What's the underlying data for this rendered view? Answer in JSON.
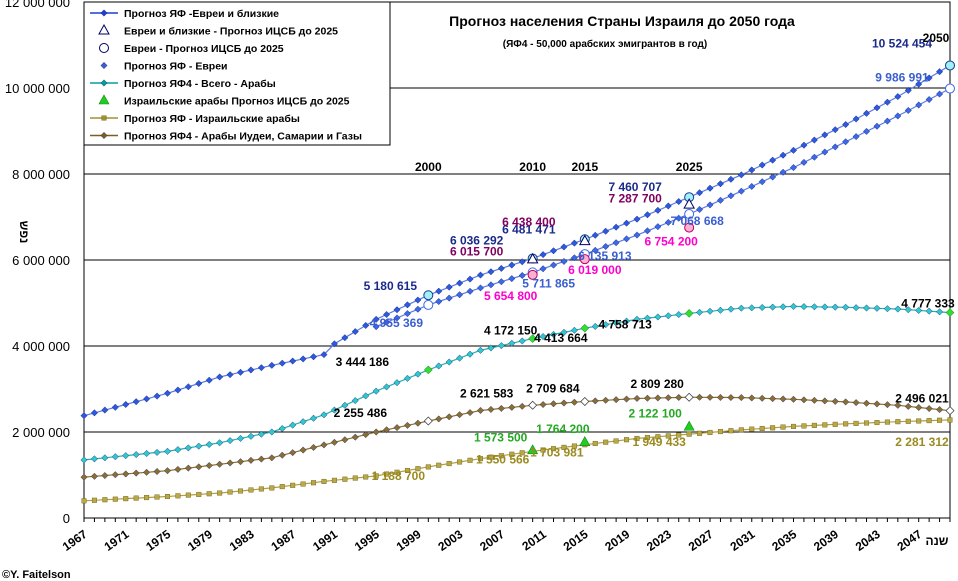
{
  "chart_data": {
    "type": "line",
    "title": "Прогноз населения Страны Израиля до 2050 года",
    "subtitle": "(ЯФ4 - 50,000 арабских эмигрантов в год)",
    "ylabel": "נפש",
    "xlabel": "שנה",
    "copyright": "©Y. Faitelson",
    "ylim": [
      0,
      12000000
    ],
    "xlim": [
      1967,
      2050
    ],
    "y_ticks": [
      "0",
      "2 000 000",
      "4 000 000",
      "6 000 000",
      "8 000 000",
      "10 000 000",
      "12 000 000"
    ],
    "x_ticks": [
      "1967",
      "1971",
      "1975",
      "1979",
      "1983",
      "1987",
      "1991",
      "1995",
      "1999",
      "2003",
      "2007",
      "2011",
      "2015",
      "2019",
      "2023",
      "2027",
      "2031",
      "2035",
      "2039",
      "2043",
      "2047"
    ],
    "year_markers": [
      {
        "label": "2000",
        "x": 2000
      },
      {
        "label": "2010",
        "x": 2010
      },
      {
        "label": "2015",
        "x": 2015
      },
      {
        "label": "2025",
        "x": 2025
      },
      {
        "label": "2050",
        "x": 2050
      }
    ],
    "legend": {
      "position": "top-left",
      "entries": [
        {
          "name": "Прогноз ЯФ -Евреи и близкие",
          "color": "#1c3fd6",
          "marker": "diamond-line"
        },
        {
          "name": "Евреи и близкие - Прогноз ИЦСБ до 2025",
          "color": "#000060",
          "marker": "triangle-open"
        },
        {
          "name": "Евреи - Прогноз ИЦСБ до 2025",
          "color": "#000060",
          "marker": "circle-open"
        },
        {
          "name": "Прогноз ЯФ - Евреи",
          "color": "#3a5ed0",
          "marker": "diamond-small"
        },
        {
          "name": "Прогноз ЯФ4 - Всего - Арабы",
          "color": "#00a0a0",
          "marker": "diamond-line"
        },
        {
          "name": "Израильские арабы Прогноз ИЦСБ до 2025",
          "color": "#22cc22",
          "marker": "triangle-filled"
        },
        {
          "name": "Прогноз ЯФ - Израильские арабы",
          "color": "#a09030",
          "marker": "square-line"
        },
        {
          "name": "Прогноз ЯФ4 - Арабы Иудеи, Самарии и Газы",
          "color": "#7a6020",
          "marker": "diamond-line"
        }
      ]
    },
    "series": [
      {
        "name": "Прогноз ЯФ -Евреи и близкие",
        "color": "#1c3fd6",
        "x": [
          1967,
          1975,
          1980,
          1985,
          1990,
          1991,
          1995,
          2000,
          2005,
          2010,
          2015,
          2020,
          2025,
          2030,
          2035,
          2040,
          2045,
          2050
        ],
        "y": [
          2380000,
          2900000,
          3280000,
          3550000,
          3800000,
          4050000,
          4620000,
          5180615,
          5650000,
          6036292,
          6481471,
          6950000,
          7460707,
          7980000,
          8550000,
          9150000,
          9800000,
          10524454
        ]
      },
      {
        "name": "Прогноз ЯФ - Евреи",
        "color": "#3a5ed0",
        "x": [
          1995,
          2000,
          2005,
          2010,
          2015,
          2020,
          2025,
          2030,
          2035,
          2040,
          2045,
          2050
        ],
        "y": [
          4450000,
          4955369,
          5350000,
          5711865,
          6135913,
          6580000,
          7068668,
          7600000,
          8150000,
          8750000,
          9350000,
          9986991
        ]
      },
      {
        "name": "Прогноз ЯФ4 - Всего - Арабы",
        "color": "#00a0a0",
        "x": [
          1967,
          1975,
          1980,
          1985,
          1990,
          1995,
          2000,
          2005,
          2010,
          2015,
          2020,
          2025,
          2030,
          2035,
          2040,
          2045,
          2050
        ],
        "y": [
          1350000,
          1550000,
          1750000,
          2000000,
          2400000,
          2950000,
          3444186,
          3900000,
          4172150,
          4413664,
          4620000,
          4758713,
          4880000,
          4920000,
          4900000,
          4860000,
          4777333
        ]
      },
      {
        "name": "Прогноз ЯФ4 - Арабы Иудеи, Самарии и Газы",
        "color": "#7a6020",
        "x": [
          1967,
          1975,
          1980,
          1985,
          1990,
          1995,
          2000,
          2005,
          2010,
          2015,
          2020,
          2025,
          2030,
          2035,
          2040,
          2045,
          2050
        ],
        "y": [
          950000,
          1100000,
          1250000,
          1400000,
          1700000,
          2000000,
          2255486,
          2500000,
          2621583,
          2709684,
          2780000,
          2809280,
          2800000,
          2760000,
          2700000,
          2620000,
          2496021
        ]
      },
      {
        "name": "Прогноз ЯФ - Израильские арабы",
        "color": "#a09030",
        "x": [
          1967,
          1975,
          1980,
          1985,
          1990,
          1995,
          2000,
          2005,
          2010,
          2015,
          2020,
          2025,
          2030,
          2035,
          2040,
          2045,
          2050
        ],
        "y": [
          400000,
          500000,
          580000,
          700000,
          850000,
          980000,
          1188700,
          1380000,
          1550566,
          1703981,
          1850000,
          1949433,
          2050000,
          2130000,
          2190000,
          2240000,
          2281312
        ]
      },
      {
        "name": "Евреи и близкие - Прогноз ИЦСБ до 2025",
        "color": "#000060",
        "marker": "triangle-open",
        "x": [
          2010,
          2015,
          2025
        ],
        "y": [
          6015700,
          6438400,
          7287700
        ]
      },
      {
        "name": "Евреи - Прогноз ИЦСБ до 2025",
        "color": "#000060",
        "marker": "circle-open",
        "x": [
          2010,
          2015,
          2025
        ],
        "y": [
          5654800,
          6019000,
          6754200
        ]
      },
      {
        "name": "Израильские арабы Прогноз ИЦСБ до 2025",
        "color": "#22cc22",
        "marker": "triangle-filled",
        "x": [
          2010,
          2015,
          2025
        ],
        "y": [
          1573500,
          1764200,
          2122100
        ]
      }
    ],
    "annotations": [
      {
        "text": "10 524 454",
        "x": 2050,
        "y": 10524454,
        "color": "#1a2a8a"
      },
      {
        "text": "9 986 991",
        "x": 2050,
        "y": 9986991,
        "color": "#3a5ed0"
      },
      {
        "text": "7 460 707",
        "x": 2025,
        "y": 7460707,
        "color": "#1a2a8a"
      },
      {
        "text": "7 287 700",
        "x": 2025,
        "y": 7287700,
        "color": "#800060"
      },
      {
        "text": "7 068 668",
        "x": 2025,
        "y": 7068668,
        "color": "#3a5ed0"
      },
      {
        "text": "6 754 200",
        "x": 2025,
        "y": 6754200,
        "color": "#ff00cc"
      },
      {
        "text": "6 481 471",
        "x": 2015,
        "y": 6481471,
        "color": "#1a2a8a"
      },
      {
        "text": "6 438 400",
        "x": 2015,
        "y": 6438400,
        "color": "#800060"
      },
      {
        "text": "6 135 913",
        "x": 2015,
        "y": 6135913,
        "color": "#3a5ed0"
      },
      {
        "text": "6 019 000",
        "x": 2015,
        "y": 6019000,
        "color": "#ff00cc"
      },
      {
        "text": "6 036 292",
        "x": 2010,
        "y": 6036292,
        "color": "#1a2a8a"
      },
      {
        "text": "6 015 700",
        "x": 2010,
        "y": 6015700,
        "color": "#800060"
      },
      {
        "text": "5 711 865",
        "x": 2010,
        "y": 5711865,
        "color": "#3a5ed0"
      },
      {
        "text": "5 654 800",
        "x": 2010,
        "y": 5654800,
        "color": "#ff00cc"
      },
      {
        "text": "5 180 615",
        "x": 2000,
        "y": 5180615,
        "color": "#1a2a8a"
      },
      {
        "text": "4 955 369",
        "x": 2000,
        "y": 4955369,
        "color": "#3a5ed0"
      },
      {
        "text": "4 777 333",
        "x": 2050,
        "y": 4777333,
        "color": "#000000"
      },
      {
        "text": "4 758 713",
        "x": 2025,
        "y": 4758713,
        "color": "#000000"
      },
      {
        "text": "4 413 664",
        "x": 2015,
        "y": 4413664,
        "color": "#000000"
      },
      {
        "text": "4 172 150",
        "x": 2010,
        "y": 4172150,
        "color": "#000000"
      },
      {
        "text": "3 444 186",
        "x": 2000,
        "y": 3444186,
        "color": "#000000"
      },
      {
        "text": "2 809 280",
        "x": 2025,
        "y": 2809280,
        "color": "#000000"
      },
      {
        "text": "2 709 684",
        "x": 2015,
        "y": 2709684,
        "color": "#000000"
      },
      {
        "text": "2 621 583",
        "x": 2010,
        "y": 2621583,
        "color": "#000000"
      },
      {
        "text": "2 496 021",
        "x": 2050,
        "y": 2496021,
        "color": "#000000"
      },
      {
        "text": "2 255 486",
        "x": 2000,
        "y": 2255486,
        "color": "#000000"
      },
      {
        "text": "2 122 100",
        "x": 2025,
        "y": 2122100,
        "color": "#22aa22"
      },
      {
        "text": "1 764 200",
        "x": 2015,
        "y": 1764200,
        "color": "#22aa22"
      },
      {
        "text": "1 573 500",
        "x": 2010,
        "y": 1573500,
        "color": "#22aa22"
      },
      {
        "text": "2 281 312",
        "x": 2050,
        "y": 2281312,
        "color": "#9a8a20"
      },
      {
        "text": "1 949 433",
        "x": 2025,
        "y": 1949433,
        "color": "#9a8a20"
      },
      {
        "text": "1 703 981",
        "x": 2015,
        "y": 1703981,
        "color": "#9a8a20"
      },
      {
        "text": "1 550 566",
        "x": 2010,
        "y": 1550566,
        "color": "#9a8a20"
      },
      {
        "text": "1 188 700",
        "x": 2000,
        "y": 1188700,
        "color": "#9a8a20"
      }
    ],
    "grid": true
  }
}
